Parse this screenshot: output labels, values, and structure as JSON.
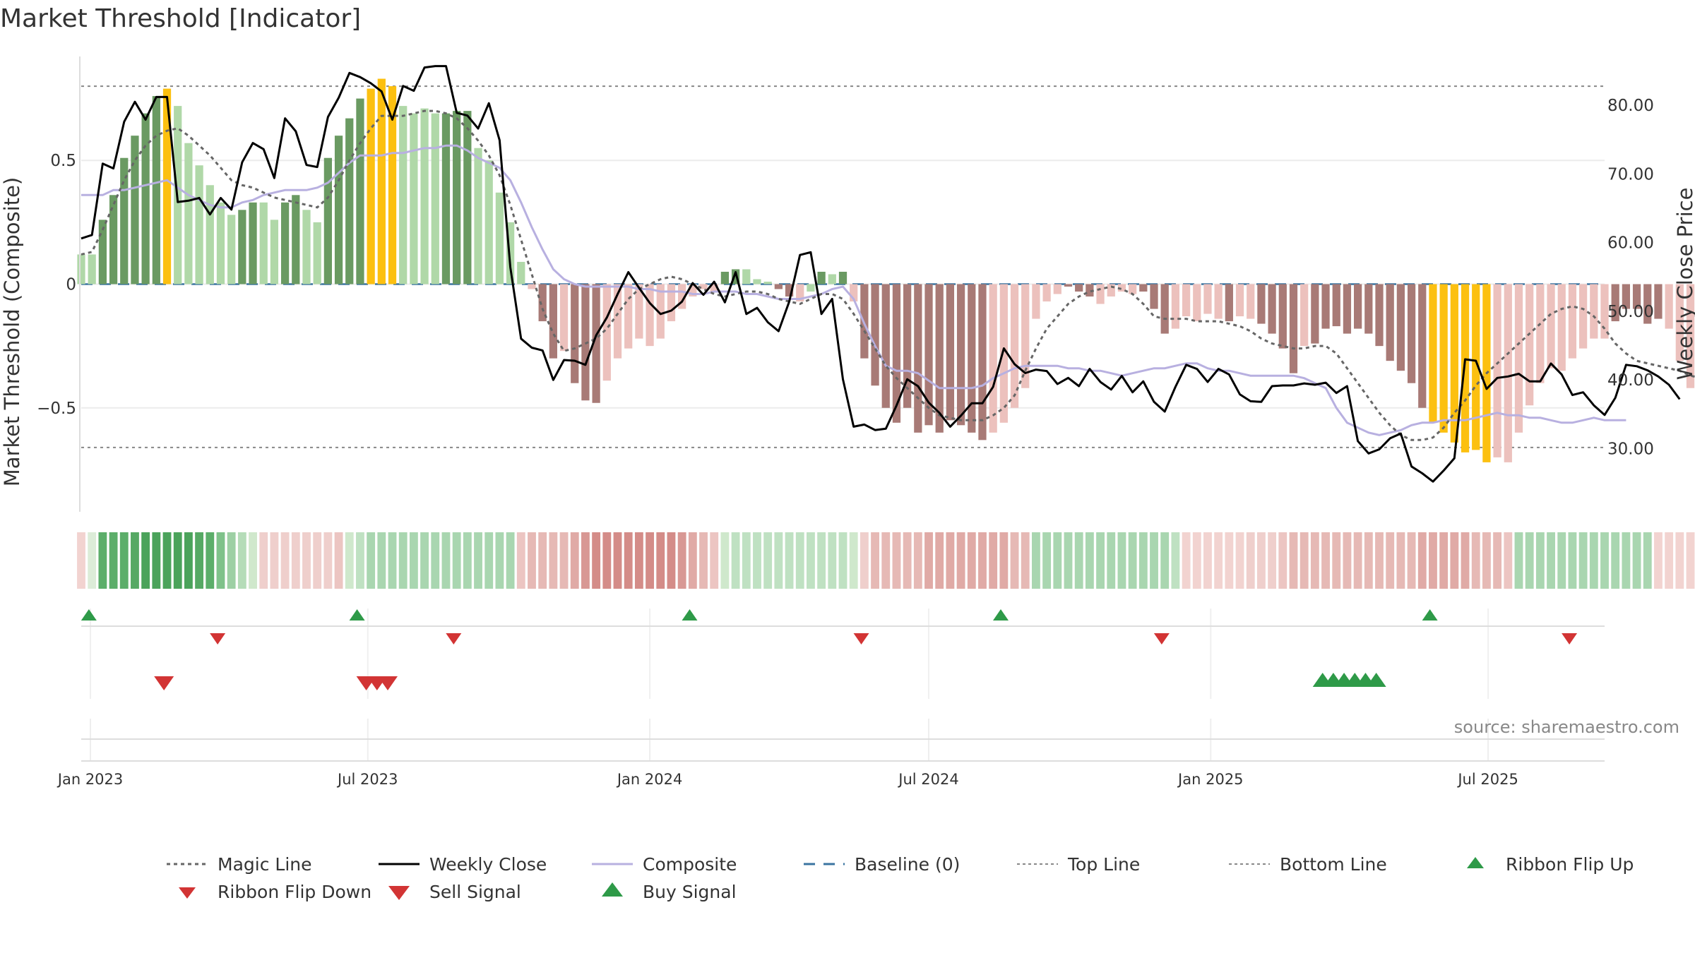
{
  "chart_data": {
    "type": "bar",
    "title": "Market Threshold [Indicator]",
    "source": "source: sharemaestro.com",
    "ylabel_left": "Market Threshold (Composite)",
    "ylabel_right": "Weekly Close Price",
    "y_left_ticks": [
      0.5,
      0,
      -0.5
    ],
    "y_left_tick_labels": [
      "0.5",
      "0",
      "−0.5"
    ],
    "y_left_range": [
      -0.92,
      0.92
    ],
    "y_right_ticks": [
      30,
      40,
      50,
      60,
      70,
      80
    ],
    "y_right_tick_labels": [
      "30.00",
      "40.00",
      "50.00",
      "60.00",
      "70.00",
      "80.00"
    ],
    "y_right_range": [
      20.8,
      87.1
    ],
    "x_start_date": "2022-12-26",
    "x_end_date": "2025-09-15",
    "x_ticks": [
      {
        "date": "2023-01-01",
        "label": "Jan 2023"
      },
      {
        "date": "2023-07-01",
        "label": "Jul 2023"
      },
      {
        "date": "2024-01-01",
        "label": "Jan 2024"
      },
      {
        "date": "2024-07-01",
        "label": "Jul 2024"
      },
      {
        "date": "2025-01-01",
        "label": "Jan 2025"
      },
      {
        "date": "2025-07-01",
        "label": "Jul 2025"
      }
    ],
    "top_line": 0.8,
    "bottom_line": -0.66,
    "baseline": 0,
    "colors": {
      "strong_bull": "#6a9a62",
      "bull": "#b0d8a8",
      "strong_bear": "#a87a76",
      "bear": "#ecc1bd",
      "extreme": "#fcc010",
      "weekly_close": "#000000",
      "composite": "#b8b0e0",
      "magic_line": "#666666",
      "baseline": "#3a74a0",
      "threshold": "#888888",
      "buy": "#2e9a48",
      "sell": "#d23434"
    },
    "composite": [
      0.12,
      0.12,
      0.26,
      0.36,
      0.51,
      0.6,
      0.69,
      0.76,
      0.79,
      0.72,
      0.57,
      0.48,
      0.4,
      0.33,
      0.28,
      0.3,
      0.33,
      0.33,
      0.26,
      0.33,
      0.36,
      0.3,
      0.25,
      0.51,
      0.6,
      0.67,
      0.75,
      0.79,
      0.83,
      0.8,
      0.72,
      0.69,
      0.71,
      0.69,
      0.69,
      0.7,
      0.7,
      0.55,
      0.5,
      0.37,
      0.25,
      0.09,
      -0.02,
      -0.15,
      -0.3,
      -0.27,
      -0.4,
      -0.47,
      -0.48,
      -0.39,
      -0.3,
      -0.26,
      -0.22,
      -0.25,
      -0.22,
      -0.15,
      -0.1,
      -0.05,
      -0.02,
      -0.03,
      0.05,
      0.06,
      0.06,
      0.02,
      0.01,
      -0.02,
      -0.05,
      -0.07,
      -0.03,
      0.05,
      0.04,
      0.05,
      -0.07,
      -0.3,
      -0.41,
      -0.5,
      -0.56,
      -0.5,
      -0.6,
      -0.57,
      -0.6,
      -0.55,
      -0.57,
      -0.6,
      -0.63,
      -0.6,
      -0.56,
      -0.5,
      -0.42,
      -0.14,
      -0.07,
      -0.04,
      -0.01,
      -0.03,
      -0.05,
      -0.08,
      -0.05,
      -0.03,
      -0.04,
      -0.03,
      -0.1,
      -0.2,
      -0.18,
      -0.13,
      -0.15,
      -0.12,
      -0.14,
      -0.15,
      -0.13,
      -0.14,
      -0.16,
      -0.2,
      -0.26,
      -0.36,
      -0.25,
      -0.24,
      -0.18,
      -0.17,
      -0.2,
      -0.18,
      -0.2,
      -0.25,
      -0.31,
      -0.35,
      -0.4,
      -0.5,
      -0.56,
      -0.6,
      -0.64,
      -0.68,
      -0.67,
      -0.72,
      -0.7,
      -0.72,
      -0.6,
      -0.49,
      -0.4,
      -0.34,
      -0.35,
      -0.3,
      -0.26,
      -0.22,
      -0.22,
      -0.15,
      -0.1,
      -0.1,
      -0.16,
      -0.14,
      -0.18,
      -0.31,
      -0.42,
      -0.42,
      -0.33,
      -0.35,
      -0.36,
      -0.38,
      -0.4,
      -0.38
    ],
    "composite_colors": [
      "bull",
      "bull",
      "strong_bull",
      "strong_bull",
      "strong_bull",
      "strong_bull",
      "strong_bull",
      "strong_bull",
      "extreme",
      "bull",
      "bull",
      "bull",
      "bull",
      "bull",
      "bull",
      "strong_bull",
      "strong_bull",
      "bull",
      "bull",
      "strong_bull",
      "strong_bull",
      "bull",
      "bull",
      "strong_bull",
      "strong_bull",
      "strong_bull",
      "strong_bull",
      "extreme",
      "extreme",
      "extreme",
      "bull",
      "bull",
      "bull",
      "bull",
      "strong_bull",
      "strong_bull",
      "strong_bull",
      "bull",
      "bull",
      "bull",
      "bull",
      "bull",
      "bear",
      "strong_bear",
      "strong_bear",
      "bear",
      "strong_bear",
      "strong_bear",
      "strong_bear",
      "bear",
      "bear",
      "bear",
      "bear",
      "bear",
      "bear",
      "bear",
      "bear",
      "bear",
      "bear",
      "bear",
      "strong_bull",
      "strong_bull",
      "bull",
      "bull",
      "bull",
      "strong_bear",
      "strong_bear",
      "bear",
      "bull",
      "strong_bull",
      "bull",
      "strong_bull",
      "bear",
      "strong_bear",
      "strong_bear",
      "strong_bear",
      "strong_bear",
      "strong_bear",
      "strong_bear",
      "strong_bear",
      "strong_bear",
      "strong_bear",
      "strong_bear",
      "strong_bear",
      "strong_bear",
      "bear",
      "bear",
      "bear",
      "bear",
      "bear",
      "bear",
      "bear",
      "strong_bear",
      "strong_bear",
      "strong_bear",
      "bear",
      "bear",
      "bear",
      "bear",
      "strong_bear",
      "strong_bear",
      "strong_bear",
      "bear",
      "bear",
      "bear",
      "bear",
      "bear",
      "strong_bear",
      "bear",
      "bear",
      "strong_bear",
      "strong_bear",
      "strong_bear",
      "strong_bear",
      "bear",
      "strong_bear",
      "strong_bear",
      "strong_bear",
      "strong_bear",
      "strong_bear",
      "strong_bear",
      "strong_bear",
      "strong_bear",
      "strong_bear",
      "strong_bear",
      "strong_bear",
      "extreme",
      "extreme",
      "extreme",
      "extreme",
      "extreme",
      "extreme",
      "bear",
      "bear",
      "bear",
      "bear",
      "bear",
      "bear",
      "bear",
      "bear",
      "bear",
      "bear",
      "bear",
      "strong_bear",
      "strong_bear",
      "strong_bear",
      "strong_bear",
      "strong_bear",
      "bear",
      "bear",
      "bear",
      "bear",
      "bear",
      "strong_bear",
      "strong_bear",
      "strong_bear"
    ],
    "weekly_close": [
      60.6,
      61.1,
      71.5,
      70.8,
      77.6,
      80.5,
      77.9,
      81.2,
      81.2,
      65.9,
      66.1,
      66.5,
      64.1,
      66.5,
      64.8,
      71.7,
      74.5,
      73.6,
      69.4,
      78.1,
      76.2,
      71.3,
      71.0,
      78.3,
      81.1,
      84.7,
      84.1,
      83.2,
      82.0,
      77.9,
      82.8,
      82.1,
      85.5,
      85.7,
      85.7,
      78.9,
      78.5,
      76.6,
      80.3,
      74.9,
      56.4,
      46.0,
      44.7,
      44.3,
      40.0,
      42.9,
      42.8,
      42.2,
      46.5,
      49.1,
      52.5,
      55.7,
      53.4,
      51.2,
      49.6,
      50.1,
      51.4,
      54.1,
      52.4,
      54.3,
      51.3,
      55.7,
      49.6,
      50.5,
      48.4,
      47.1,
      51.4,
      58.2,
      58.6,
      49.6,
      51.8,
      40.1,
      33.2,
      33.5,
      32.7,
      32.9,
      36.3,
      40.1,
      39.1,
      36.7,
      35.2,
      33.2,
      34.8,
      36.6,
      36.6,
      39.0,
      44.6,
      42.3,
      41.0,
      41.5,
      41.3,
      39.4,
      40.3,
      39.1,
      41.6,
      39.7,
      38.6,
      40.6,
      38.2,
      39.8,
      36.8,
      35.4,
      39.0,
      42.2,
      41.6,
      39.7,
      41.6,
      40.8,
      37.9,
      36.9,
      36.8,
      39.1,
      39.2,
      39.2,
      39.5,
      39.3,
      39.6,
      38.1,
      39.1,
      31.1,
      29.3,
      29.9,
      31.5,
      32.2,
      27.4,
      26.4,
      25.2,
      26.8,
      28.6,
      43.0,
      42.8,
      38.7,
      40.3,
      40.5,
      40.9,
      39.8,
      39.8,
      42.4,
      40.8,
      37.8,
      38.2,
      36.3,
      34.9,
      37.4,
      42.2,
      42.0,
      41.4,
      40.5,
      39.3,
      37.2
    ],
    "composite_line": [
      0.36,
      0.36,
      0.36,
      0.38,
      0.38,
      0.39,
      0.4,
      0.41,
      0.42,
      0.39,
      0.36,
      0.34,
      0.32,
      0.31,
      0.31,
      0.33,
      0.34,
      0.36,
      0.37,
      0.38,
      0.38,
      0.38,
      0.39,
      0.41,
      0.45,
      0.49,
      0.52,
      0.52,
      0.52,
      0.53,
      0.53,
      0.54,
      0.55,
      0.55,
      0.56,
      0.56,
      0.54,
      0.51,
      0.49,
      0.47,
      0.42,
      0.33,
      0.23,
      0.14,
      0.06,
      0.02,
      -0.0,
      -0.01,
      -0.01,
      -0.01,
      -0.01,
      -0.01,
      -0.02,
      -0.02,
      -0.03,
      -0.03,
      -0.03,
      -0.04,
      -0.04,
      -0.03,
      -0.03,
      -0.03,
      -0.04,
      -0.04,
      -0.05,
      -0.06,
      -0.06,
      -0.06,
      -0.05,
      -0.04,
      -0.02,
      -0.01,
      -0.06,
      -0.16,
      -0.25,
      -0.33,
      -0.35,
      -0.35,
      -0.36,
      -0.39,
      -0.42,
      -0.42,
      -0.42,
      -0.42,
      -0.41,
      -0.38,
      -0.36,
      -0.34,
      -0.33,
      -0.33,
      -0.33,
      -0.33,
      -0.34,
      -0.34,
      -0.35,
      -0.35,
      -0.36,
      -0.37,
      -0.36,
      -0.35,
      -0.34,
      -0.34,
      -0.33,
      -0.32,
      -0.32,
      -0.34,
      -0.35,
      -0.35,
      -0.36,
      -0.37,
      -0.37,
      -0.37,
      -0.37,
      -0.37,
      -0.38,
      -0.4,
      -0.42,
      -0.5,
      -0.56,
      -0.58,
      -0.6,
      -0.61,
      -0.6,
      -0.59,
      -0.57,
      -0.56,
      -0.56,
      -0.55,
      -0.55,
      -0.55,
      -0.54,
      -0.53,
      -0.52,
      -0.53,
      -0.53,
      -0.54,
      -0.54,
      -0.55,
      -0.56,
      -0.56,
      -0.55,
      -0.54,
      -0.55,
      -0.55,
      -0.55
    ],
    "magic_line": [
      0.12,
      0.13,
      0.22,
      0.32,
      0.42,
      0.5,
      0.56,
      0.6,
      0.62,
      0.63,
      0.6,
      0.56,
      0.52,
      0.47,
      0.42,
      0.4,
      0.39,
      0.37,
      0.35,
      0.34,
      0.33,
      0.32,
      0.31,
      0.35,
      0.42,
      0.5,
      0.57,
      0.63,
      0.68,
      0.68,
      0.68,
      0.69,
      0.7,
      0.7,
      0.69,
      0.67,
      0.63,
      0.58,
      0.52,
      0.44,
      0.32,
      0.18,
      0.04,
      -0.1,
      -0.2,
      -0.27,
      -0.26,
      -0.24,
      -0.22,
      -0.18,
      -0.12,
      -0.06,
      -0.02,
      0.0,
      0.02,
      0.03,
      0.02,
      0.0,
      -0.02,
      -0.04,
      -0.05,
      -0.04,
      -0.03,
      -0.03,
      -0.04,
      -0.06,
      -0.07,
      -0.08,
      -0.06,
      -0.04,
      -0.04,
      -0.06,
      -0.12,
      -0.19,
      -0.26,
      -0.33,
      -0.38,
      -0.42,
      -0.46,
      -0.5,
      -0.53,
      -0.54,
      -0.55,
      -0.55,
      -0.55,
      -0.53,
      -0.5,
      -0.45,
      -0.35,
      -0.26,
      -0.18,
      -0.13,
      -0.08,
      -0.05,
      -0.03,
      -0.02,
      -0.01,
      -0.02,
      -0.04,
      -0.08,
      -0.13,
      -0.14,
      -0.14,
      -0.14,
      -0.15,
      -0.15,
      -0.15,
      -0.16,
      -0.17,
      -0.19,
      -0.22,
      -0.24,
      -0.25,
      -0.26,
      -0.26,
      -0.25,
      -0.25,
      -0.28,
      -0.34,
      -0.4,
      -0.46,
      -0.52,
      -0.57,
      -0.61,
      -0.63,
      -0.63,
      -0.62,
      -0.58,
      -0.52,
      -0.47,
      -0.41,
      -0.36,
      -0.32,
      -0.28,
      -0.24,
      -0.2,
      -0.16,
      -0.12,
      -0.1,
      -0.09,
      -0.1,
      -0.13,
      -0.18,
      -0.24,
      -0.28,
      -0.31,
      -0.32,
      -0.33,
      -0.34,
      -0.35,
      -0.37,
      -0.38
    ],
    "ribbon_colors": [
      "#f2d3d0",
      "#dcecd8",
      "#5cae6a",
      "#5cae6a",
      "#5cae6a",
      "#56a964",
      "#4ba35b",
      "#4ba35b",
      "#4ba35b",
      "#4ba35b",
      "#4ba35b",
      "#56a964",
      "#5cae6a",
      "#7fc28a",
      "#9dd0a4",
      "#b5dcb8",
      "#d0e8cc",
      "#efcfcc",
      "#efcfcc",
      "#efcfcc",
      "#efcfcc",
      "#efcfcc",
      "#efcfcc",
      "#efcfcc",
      "#ecc5c2",
      "#cfe8cc",
      "#bfe1c2",
      "#a9d6b0",
      "#a9d6b0",
      "#a9d6b0",
      "#a9d6b0",
      "#a9d6b0",
      "#a9d6b0",
      "#a9d6b0",
      "#a9d6b0",
      "#a9d6b0",
      "#a9d6b0",
      "#a9d6b0",
      "#a9d6b0",
      "#a9d6b0",
      "#a9d6b0",
      "#ecc5c2",
      "#e6b9b5",
      "#e6b9b5",
      "#e6b9b5",
      "#e6b9b5",
      "#e0aaa6",
      "#d89894",
      "#d48c88",
      "#d48c88",
      "#d48c88",
      "#d48c88",
      "#d48c88",
      "#d48c88",
      "#d48c88",
      "#d48c88",
      "#d89894",
      "#e0aaa6",
      "#e6b9b5",
      "#ecc5c2",
      "#cfe8cc",
      "#bfe1c2",
      "#bfe1c2",
      "#bfe1c2",
      "#bfe1c2",
      "#bfe1c2",
      "#bfe1c2",
      "#bfe1c2",
      "#bfe1c2",
      "#bfe1c2",
      "#bfe1c2",
      "#bfe1c2",
      "#cfe8cc",
      "#efcfcc",
      "#e6b9b5",
      "#e6b9b5",
      "#e6b9b5",
      "#e6b9b5",
      "#e6b9b5",
      "#e0aaa6",
      "#e0aaa6",
      "#e0aaa6",
      "#e0aaa6",
      "#e0aaa6",
      "#e0aaa6",
      "#e0aaa6",
      "#e0aaa6",
      "#e6b9b5",
      "#e6b9b5",
      "#a9d6b0",
      "#a9d6b0",
      "#a9d6b0",
      "#a9d6b0",
      "#a9d6b0",
      "#a9d6b0",
      "#a9d6b0",
      "#a9d6b0",
      "#a9d6b0",
      "#a9d6b0",
      "#a9d6b0",
      "#a9d6b0",
      "#a9d6b0",
      "#bfe1c2",
      "#f2d3d0",
      "#f2d3d0",
      "#f2d3d0",
      "#f2d3d0",
      "#f2d3d0",
      "#f2d3d0",
      "#efcfcc",
      "#efcfcc",
      "#efcfcc",
      "#ecc5c2",
      "#e6b9b5",
      "#e6b9b5",
      "#e6b9b5",
      "#e6b9b5",
      "#e6b9b5",
      "#e6b9b5",
      "#e6b9b5",
      "#e6b9b5",
      "#e6b9b5",
      "#e6b9b5",
      "#e6b9b5",
      "#e6b9b5",
      "#e0aaa6",
      "#e0aaa6",
      "#e0aaa6",
      "#e0aaa6",
      "#e0aaa6",
      "#e6b9b5",
      "#e6b9b5",
      "#e6b9b5",
      "#ecc5c2",
      "#a9d6b0",
      "#a9d6b0",
      "#a9d6b0",
      "#a9d6b0",
      "#a9d6b0",
      "#a9d6b0",
      "#a9d6b0",
      "#a9d6b0",
      "#a9d6b0",
      "#a9d6b0",
      "#a9d6b0",
      "#a9d6b0",
      "#a9d6b0",
      "#f2d3d0",
      "#f2d3d0",
      "#f2d3d0",
      "#f2d3d0",
      "#f2d3d0",
      "#f2d3d0"
    ],
    "ribbon_flip_up": [
      "2022-12-31",
      "2023-06-24",
      "2024-01-27",
      "2024-08-17",
      "2025-05-24"
    ],
    "ribbon_flip_down": [
      "2023-03-25",
      "2023-08-26",
      "2024-05-18",
      "2024-11-30",
      "2025-08-23"
    ],
    "sell_signals": [
      "2023-02-18",
      "2023-06-30",
      "2023-07-07",
      "2023-07-14"
    ],
    "buy_signals": [
      "2025-03-15",
      "2025-03-22",
      "2025-03-29",
      "2025-04-05",
      "2025-04-12",
      "2025-04-19"
    ],
    "legend": [
      {
        "label": "Magic Line",
        "kind": "dotted",
        "color": "#666666"
      },
      {
        "label": "Weekly Close",
        "kind": "solid",
        "color": "#000000"
      },
      {
        "label": "Composite",
        "kind": "solid-thin",
        "color": "#b8b0e0"
      },
      {
        "label": "Baseline (0)",
        "kind": "dashed",
        "color": "#3a74a0"
      },
      {
        "label": "Top Line",
        "kind": "dotted-thin",
        "color": "#888888"
      },
      {
        "label": "Bottom Line",
        "kind": "dotted-thin",
        "color": "#888888"
      },
      {
        "label": "Ribbon Flip Up",
        "kind": "tri-up-small",
        "color": "#2e9a48"
      },
      {
        "label": "Ribbon Flip Down",
        "kind": "tri-down-small",
        "color": "#d23434"
      },
      {
        "label": "Sell Signal",
        "kind": "tri-down",
        "color": "#d23434"
      },
      {
        "label": "Buy Signal",
        "kind": "tri-up",
        "color": "#2e9a48"
      }
    ]
  }
}
